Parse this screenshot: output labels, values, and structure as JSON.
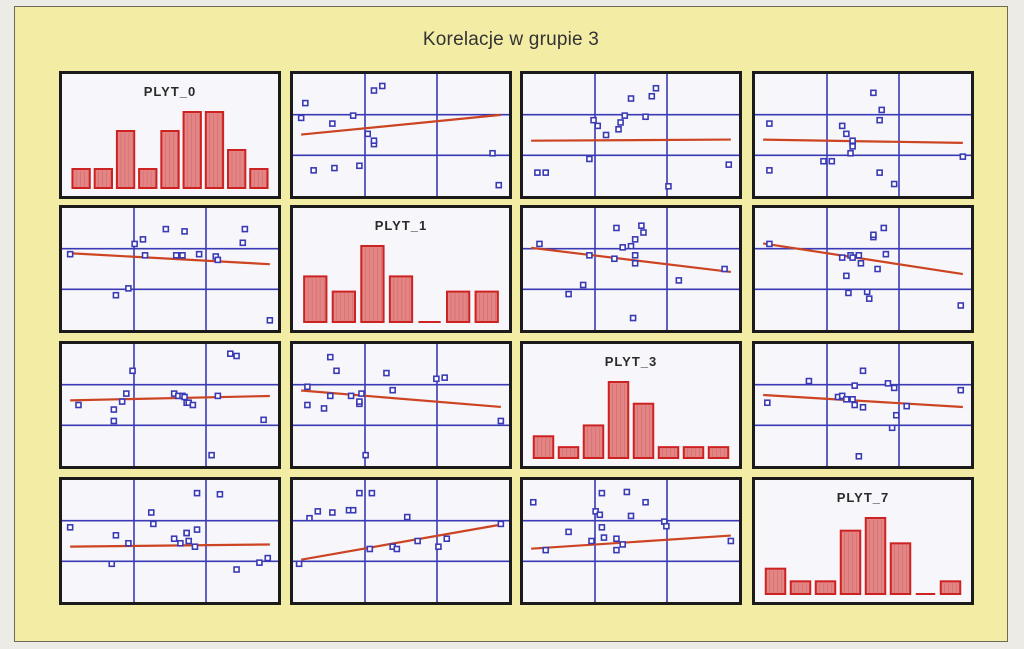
{
  "title": "Korelacje w grupie 3",
  "colors": {
    "panel_bg": "#f7f7fb",
    "grid": "#3a3ab5",
    "point": "#3a3ab5",
    "fit_line": "#cc4422",
    "bar_fill": "#e38585",
    "bar_edge": "#cc2222"
  },
  "chart_data": {
    "type": "scatter",
    "layout": "scatterplot-matrix",
    "variables": [
      "PLYT_0",
      "PLYT_1",
      "PLYT_3",
      "PLYT_7"
    ],
    "diagonal": [
      {
        "variable": "PLYT_0",
        "type": "bar",
        "values": [
          1,
          1,
          3,
          1,
          3,
          4,
          4,
          2,
          1
        ]
      },
      {
        "variable": "PLYT_1",
        "type": "bar",
        "values": [
          3,
          2,
          5,
          3,
          0,
          2,
          2
        ]
      },
      {
        "variable": "PLYT_3",
        "type": "bar",
        "values": [
          2,
          1,
          3,
          7,
          5,
          1,
          1,
          1
        ]
      },
      {
        "variable": "PLYT_7",
        "type": "bar",
        "values": [
          2,
          1,
          1,
          5,
          6,
          4,
          0,
          1
        ]
      }
    ],
    "scatter": [
      {
        "row": 0,
        "col": 1,
        "points": [
          [
            0.02,
            0.65
          ],
          [
            0.04,
            0.78
          ],
          [
            0.08,
            0.19
          ],
          [
            0.18,
            0.21
          ],
          [
            0.17,
            0.6
          ],
          [
            0.3,
            0.23
          ],
          [
            0.27,
            0.67
          ],
          [
            0.34,
            0.51
          ],
          [
            0.37,
            0.42
          ],
          [
            0.37,
            0.45
          ],
          [
            0.41,
            0.93
          ],
          [
            0.37,
            0.89
          ],
          [
            0.94,
            0.34
          ],
          [
            0.97,
            0.06
          ]
        ],
        "fit": [
          [
            0.0,
            0.5
          ],
          [
            1.0,
            0.68
          ]
        ]
      },
      {
        "row": 0,
        "col": 2,
        "points": [
          [
            0.05,
            0.17
          ],
          [
            0.09,
            0.17
          ],
          [
            0.38,
            0.5
          ],
          [
            0.34,
            0.58
          ],
          [
            0.3,
            0.29
          ],
          [
            0.32,
            0.63
          ],
          [
            0.44,
            0.55
          ],
          [
            0.45,
            0.61
          ],
          [
            0.47,
            0.67
          ],
          [
            0.5,
            0.82
          ],
          [
            0.57,
            0.66
          ],
          [
            0.6,
            0.84
          ],
          [
            0.62,
            0.91
          ],
          [
            0.68,
            0.05
          ],
          [
            0.97,
            0.24
          ]
        ],
        "fit": [
          [
            0.0,
            0.45
          ],
          [
            1.0,
            0.46
          ]
        ]
      },
      {
        "row": 0,
        "col": 3,
        "points": [
          [
            0.05,
            0.19
          ],
          [
            0.05,
            0.6
          ],
          [
            0.31,
            0.27
          ],
          [
            0.35,
            0.27
          ],
          [
            0.44,
            0.34
          ],
          [
            0.45,
            0.43
          ],
          [
            0.45,
            0.45
          ],
          [
            0.45,
            0.4
          ],
          [
            0.42,
            0.51
          ],
          [
            0.4,
            0.58
          ],
          [
            0.58,
            0.63
          ],
          [
            0.59,
            0.72
          ],
          [
            0.55,
            0.87
          ],
          [
            0.65,
            0.07
          ],
          [
            0.58,
            0.17
          ],
          [
            0.98,
            0.31
          ]
        ],
        "fit": [
          [
            0.0,
            0.46
          ],
          [
            1.0,
            0.43
          ]
        ]
      },
      {
        "row": 1,
        "col": 0,
        "points": [
          [
            0.02,
            0.63
          ],
          [
            0.24,
            0.27
          ],
          [
            0.3,
            0.33
          ],
          [
            0.33,
            0.72
          ],
          [
            0.37,
            0.76
          ],
          [
            0.38,
            0.62
          ],
          [
            0.48,
            0.85
          ],
          [
            0.57,
            0.83
          ],
          [
            0.53,
            0.62
          ],
          [
            0.56,
            0.62
          ],
          [
            0.64,
            0.63
          ],
          [
            0.72,
            0.61
          ],
          [
            0.73,
            0.58
          ],
          [
            0.85,
            0.73
          ],
          [
            0.86,
            0.85
          ],
          [
            0.98,
            0.05
          ]
        ],
        "fit": [
          [
            0.0,
            0.64
          ],
          [
            1.0,
            0.54
          ]
        ]
      },
      {
        "row": 1,
        "col": 2,
        "points": [
          [
            0.06,
            0.72
          ],
          [
            0.2,
            0.28
          ],
          [
            0.27,
            0.36
          ],
          [
            0.3,
            0.62
          ],
          [
            0.42,
            0.59
          ],
          [
            0.43,
            0.86
          ],
          [
            0.46,
            0.69
          ],
          [
            0.52,
            0.76
          ],
          [
            0.51,
            0.07
          ],
          [
            0.5,
            0.7
          ],
          [
            0.52,
            0.62
          ],
          [
            0.52,
            0.55
          ],
          [
            0.56,
            0.82
          ],
          [
            0.55,
            0.88
          ],
          [
            0.73,
            0.4
          ],
          [
            0.95,
            0.5
          ]
        ],
        "fit": [
          [
            0.0,
            0.69
          ],
          [
            1.0,
            0.47
          ]
        ]
      },
      {
        "row": 1,
        "col": 3,
        "points": [
          [
            0.05,
            0.72
          ],
          [
            0.4,
            0.6
          ],
          [
            0.42,
            0.44
          ],
          [
            0.43,
            0.29
          ],
          [
            0.44,
            0.62
          ],
          [
            0.45,
            0.6
          ],
          [
            0.48,
            0.62
          ],
          [
            0.49,
            0.55
          ],
          [
            0.52,
            0.3
          ],
          [
            0.53,
            0.24
          ],
          [
            0.55,
            0.78
          ],
          [
            0.55,
            0.8
          ],
          [
            0.57,
            0.5
          ],
          [
            0.6,
            0.86
          ],
          [
            0.61,
            0.63
          ],
          [
            0.97,
            0.18
          ]
        ],
        "fit": [
          [
            0.0,
            0.73
          ],
          [
            1.0,
            0.45
          ]
        ]
      },
      {
        "row": 2,
        "col": 0,
        "points": [
          [
            0.06,
            0.5
          ],
          [
            0.23,
            0.46
          ],
          [
            0.23,
            0.36
          ],
          [
            0.27,
            0.53
          ],
          [
            0.29,
            0.6
          ],
          [
            0.32,
            0.8
          ],
          [
            0.52,
            0.6
          ],
          [
            0.54,
            0.58
          ],
          [
            0.56,
            0.58
          ],
          [
            0.57,
            0.57
          ],
          [
            0.58,
            0.52
          ],
          [
            0.59,
            0.52
          ],
          [
            0.61,
            0.5
          ],
          [
            0.73,
            0.58
          ],
          [
            0.79,
            0.95
          ],
          [
            0.82,
            0.93
          ],
          [
            0.7,
            0.06
          ],
          [
            0.95,
            0.37
          ]
        ],
        "fit": [
          [
            0.0,
            0.54
          ],
          [
            1.0,
            0.58
          ]
        ]
      },
      {
        "row": 2,
        "col": 1,
        "points": [
          [
            0.05,
            0.66
          ],
          [
            0.05,
            0.5
          ],
          [
            0.13,
            0.47
          ],
          [
            0.16,
            0.58
          ],
          [
            0.16,
            0.92
          ],
          [
            0.19,
            0.8
          ],
          [
            0.26,
            0.58
          ],
          [
            0.3,
            0.51
          ],
          [
            0.3,
            0.53
          ],
          [
            0.31,
            0.6
          ],
          [
            0.33,
            0.06
          ],
          [
            0.43,
            0.78
          ],
          [
            0.46,
            0.63
          ],
          [
            0.67,
            0.73
          ],
          [
            0.71,
            0.74
          ],
          [
            0.98,
            0.36
          ]
        ],
        "fit": [
          [
            0.0,
            0.63
          ],
          [
            1.0,
            0.48
          ]
        ]
      },
      {
        "row": 2,
        "col": 3,
        "points": [
          [
            0.04,
            0.52
          ],
          [
            0.24,
            0.71
          ],
          [
            0.38,
            0.57
          ],
          [
            0.4,
            0.58
          ],
          [
            0.42,
            0.55
          ],
          [
            0.45,
            0.55
          ],
          [
            0.46,
            0.5
          ],
          [
            0.5,
            0.48
          ],
          [
            0.46,
            0.67
          ],
          [
            0.5,
            0.8
          ],
          [
            0.48,
            0.05
          ],
          [
            0.62,
            0.69
          ],
          [
            0.64,
            0.3
          ],
          [
            0.65,
            0.65
          ],
          [
            0.66,
            0.41
          ],
          [
            0.71,
            0.49
          ],
          [
            0.97,
            0.63
          ]
        ],
        "fit": [
          [
            0.0,
            0.59
          ],
          [
            1.0,
            0.48
          ]
        ]
      },
      {
        "row": 3,
        "col": 0,
        "points": [
          [
            0.02,
            0.62
          ],
          [
            0.22,
            0.3
          ],
          [
            0.24,
            0.55
          ],
          [
            0.3,
            0.48
          ],
          [
            0.41,
            0.75
          ],
          [
            0.42,
            0.65
          ],
          [
            0.52,
            0.52
          ],
          [
            0.55,
            0.48
          ],
          [
            0.58,
            0.57
          ],
          [
            0.58,
            0.57
          ],
          [
            0.59,
            0.5
          ],
          [
            0.62,
            0.45
          ],
          [
            0.63,
            0.6
          ],
          [
            0.63,
            0.92
          ],
          [
            0.74,
            0.91
          ],
          [
            0.82,
            0.25
          ],
          [
            0.93,
            0.31
          ],
          [
            0.97,
            0.35
          ]
        ],
        "fit": [
          [
            0.0,
            0.45
          ],
          [
            1.0,
            0.47
          ]
        ]
      },
      {
        "row": 3,
        "col": 1,
        "points": [
          [
            0.01,
            0.3
          ],
          [
            0.06,
            0.7
          ],
          [
            0.1,
            0.76
          ],
          [
            0.17,
            0.75
          ],
          [
            0.25,
            0.77
          ],
          [
            0.27,
            0.77
          ],
          [
            0.3,
            0.92
          ],
          [
            0.35,
            0.43
          ],
          [
            0.36,
            0.92
          ],
          [
            0.46,
            0.45
          ],
          [
            0.48,
            0.43
          ],
          [
            0.53,
            0.71
          ],
          [
            0.58,
            0.5
          ],
          [
            0.68,
            0.45
          ],
          [
            0.72,
            0.52
          ],
          [
            0.98,
            0.65
          ]
        ],
        "fit": [
          [
            0.0,
            0.33
          ],
          [
            1.0,
            0.65
          ]
        ]
      },
      {
        "row": 3,
        "col": 2,
        "points": [
          [
            0.03,
            0.84
          ],
          [
            0.09,
            0.42
          ],
          [
            0.2,
            0.58
          ],
          [
            0.31,
            0.5
          ],
          [
            0.33,
            0.76
          ],
          [
            0.35,
            0.73
          ],
          [
            0.36,
            0.62
          ],
          [
            0.37,
            0.53
          ],
          [
            0.43,
            0.52
          ],
          [
            0.43,
            0.42
          ],
          [
            0.46,
            0.47
          ],
          [
            0.5,
            0.72
          ],
          [
            0.36,
            0.92
          ],
          [
            0.48,
            0.93
          ],
          [
            0.57,
            0.84
          ],
          [
            0.66,
            0.67
          ],
          [
            0.67,
            0.63
          ],
          [
            0.98,
            0.5
          ]
        ],
        "fit": [
          [
            0.0,
            0.43
          ],
          [
            1.0,
            0.55
          ]
        ]
      }
    ]
  }
}
